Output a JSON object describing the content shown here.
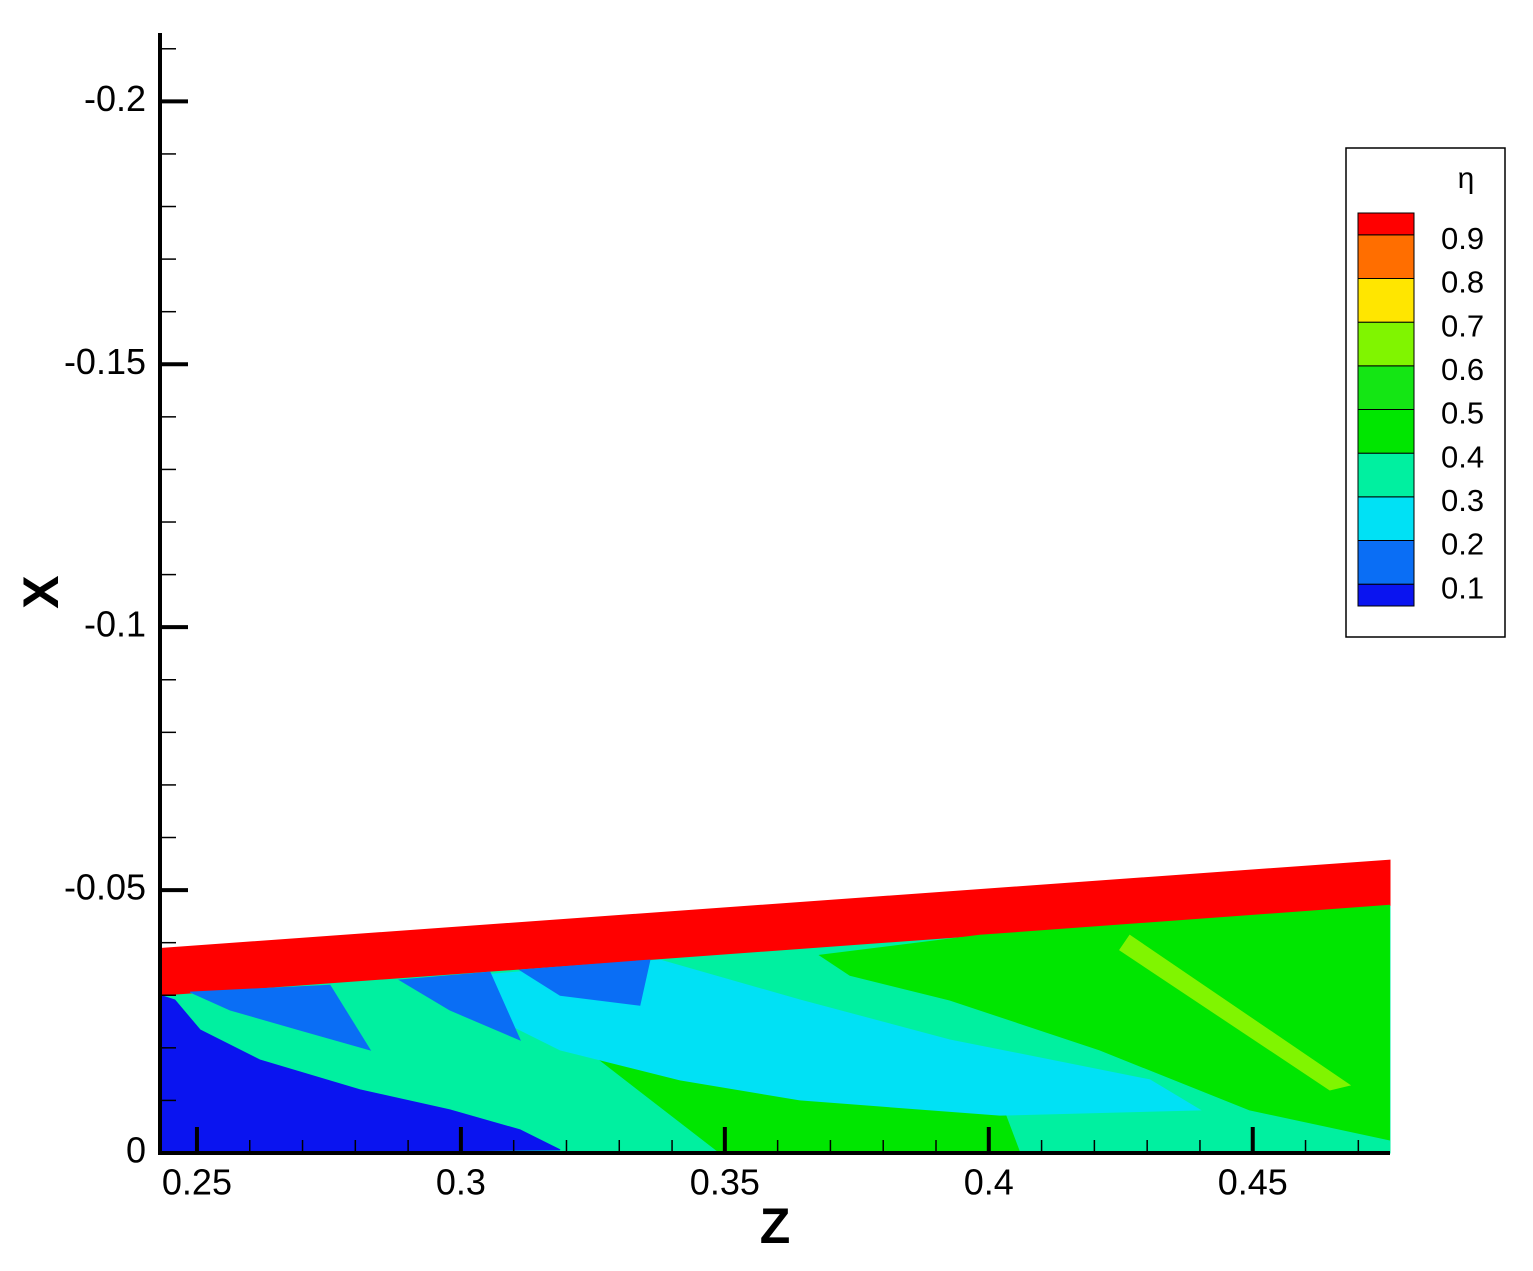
{
  "chart_data": {
    "type": "contour",
    "x_label": "Z",
    "y_label": "X",
    "xlim": [
      0.243,
      0.476
    ],
    "ylim": [
      0,
      -0.213
    ],
    "xticks": [
      0.25,
      0.3,
      0.35,
      0.4,
      0.45
    ],
    "yticks": [
      0,
      -0.05,
      -0.1,
      -0.15,
      -0.2
    ],
    "xminorticks": [
      0.26,
      0.27,
      0.28,
      0.29,
      0.31,
      0.32,
      0.33,
      0.34,
      0.36,
      0.37,
      0.38,
      0.39,
      0.41,
      0.42,
      0.43,
      0.44,
      0.46,
      0.47
    ],
    "yminorticks": [
      -0.01,
      -0.02,
      -0.03,
      -0.04,
      -0.06,
      -0.07,
      -0.08,
      -0.09,
      -0.11,
      -0.12,
      -0.13,
      -0.14,
      -0.16,
      -0.17,
      -0.18,
      -0.19,
      -0.21
    ],
    "legend_title": "η",
    "levels": [
      0.1,
      0.2,
      0.3,
      0.4,
      0.5,
      0.6,
      0.7,
      0.8,
      0.9
    ],
    "colors": [
      "#0a14f0",
      "#0a6ef5",
      "#00e1f5",
      "#00f0a0",
      "#00e600",
      "#14e614",
      "#80f500",
      "#ffe600",
      "#ff6e00",
      "#ff0000"
    ],
    "legend_position": "upper right",
    "regions": [
      {
        "band": 3,
        "points": [
          [
            0.243,
            -0.03
          ],
          [
            0.476,
            -0.0471
          ],
          [
            0.476,
            0
          ],
          [
            0.243,
            0
          ]
        ]
      },
      {
        "band": 9,
        "points": [
          [
            0.243,
            -0.0389
          ],
          [
            0.476,
            -0.0557
          ],
          [
            0.476,
            -0.0471
          ],
          [
            0.243,
            -0.03
          ]
        ]
      },
      {
        "band": 4,
        "points": [
          [
            0.368,
            -0.0376
          ],
          [
            0.3983,
            -0.0414
          ],
          [
            0.4759,
            -0.0471
          ],
          [
            0.4759,
            -0.0025
          ],
          [
            0.4494,
            -0.0082
          ],
          [
            0.421,
            -0.0196
          ],
          [
            0.3926,
            -0.0291
          ],
          [
            0.3737,
            -0.0338
          ]
        ]
      },
      {
        "band": 6,
        "points": [
          [
            0.4267,
            -0.0414
          ],
          [
            0.4684,
            -0.0129
          ],
          [
            0.4646,
            -0.012
          ],
          [
            0.4248,
            -0.0386
          ]
        ]
      },
      {
        "band": 4,
        "points": [
          [
            0.3377,
            -0.0357
          ],
          [
            0.3491,
            -0.0291
          ],
          [
            0.3737,
            -0.0177
          ],
          [
            0.4021,
            -0.0101
          ],
          [
            0.4059,
            0
          ],
          [
            0.3491,
            0
          ],
          [
            0.3263,
            -0.0177
          ]
        ]
      },
      {
        "band": 2,
        "points": [
          [
            0.3036,
            -0.0338
          ],
          [
            0.3377,
            -0.0367
          ],
          [
            0.3642,
            -0.0291
          ],
          [
            0.3926,
            -0.0215
          ],
          [
            0.4305,
            -0.0139
          ],
          [
            0.44,
            -0.0082
          ],
          [
            0.4021,
            -0.0072
          ],
          [
            0.3642,
            -0.0101
          ],
          [
            0.3415,
            -0.0139
          ],
          [
            0.3188,
            -0.0196
          ],
          [
            0.3036,
            -0.0272
          ]
        ]
      },
      {
        "band": 1,
        "points": [
          [
            0.2487,
            -0.0306
          ],
          [
            0.2752,
            -0.0319
          ],
          [
            0.2828,
            -0.0196
          ],
          [
            0.2695,
            -0.0234
          ],
          [
            0.2563,
            -0.0272
          ]
        ]
      },
      {
        "band": 1,
        "points": [
          [
            0.2884,
            -0.0329
          ],
          [
            0.3055,
            -0.0344
          ],
          [
            0.3112,
            -0.0215
          ],
          [
            0.2979,
            -0.0272
          ]
        ]
      },
      {
        "band": 1,
        "points": [
          [
            0.3112,
            -0.0348
          ],
          [
            0.3358,
            -0.0367
          ],
          [
            0.3339,
            -0.0281
          ],
          [
            0.3188,
            -0.03
          ]
        ]
      },
      {
        "band": 0,
        "points": [
          [
            0.243,
            -0.03
          ],
          [
            0.2458,
            -0.0291
          ],
          [
            0.2506,
            -0.0234
          ],
          [
            0.2619,
            -0.0177
          ],
          [
            0.2809,
            -0.012
          ],
          [
            0.2979,
            -0.0082
          ],
          [
            0.3112,
            -0.0044
          ],
          [
            0.3188,
            -0.0006
          ],
          [
            0.243,
            0
          ]
        ]
      }
    ]
  }
}
